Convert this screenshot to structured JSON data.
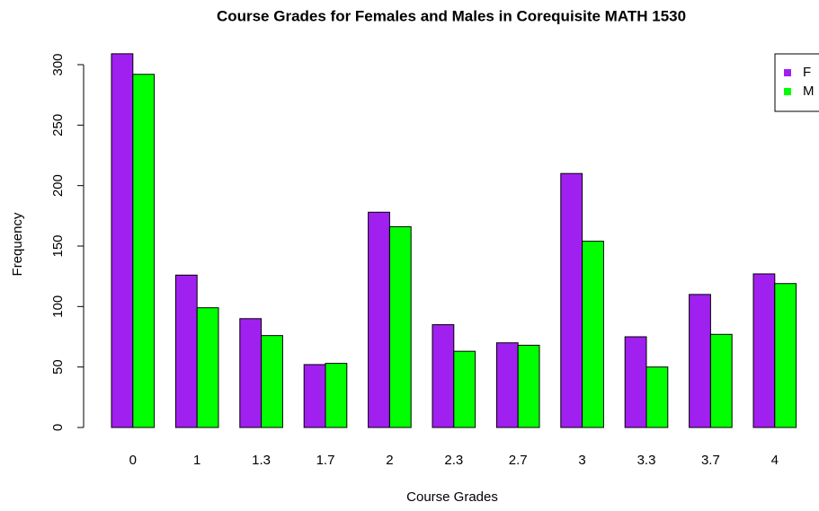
{
  "chart_data": {
    "type": "bar",
    "title": "Course Grades for Females and Males in Corequisite MATH 1530",
    "x_label": "Course Grades",
    "y_label": "Frequency",
    "categories": [
      "0",
      "1",
      "1.3",
      "1.7",
      "2",
      "2.3",
      "2.7",
      "3",
      "3.3",
      "3.7",
      "4"
    ],
    "series": [
      {
        "name": "F",
        "color": "#a020f0",
        "values": [
          309,
          126,
          90,
          52,
          178,
          85,
          70,
          210,
          75,
          110,
          127
        ]
      },
      {
        "name": "M",
        "color": "#00ff00",
        "values": [
          292,
          99,
          76,
          53,
          166,
          63,
          68,
          154,
          50,
          77,
          119
        ]
      }
    ],
    "ylim": [
      0,
      300
    ],
    "yticks": [
      0,
      50,
      100,
      150,
      200,
      250,
      300
    ],
    "legend": "top-right"
  }
}
